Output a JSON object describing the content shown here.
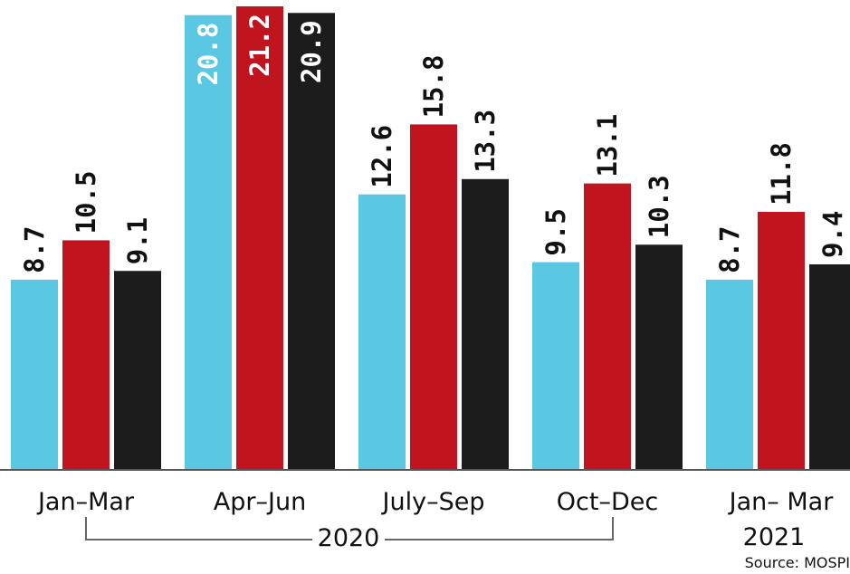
{
  "chart_data": {
    "type": "bar",
    "categories": [
      "Jan–Mar",
      "Apr–Jun",
      "July–Sep",
      "Oct–Dec",
      "Jan– Mar"
    ],
    "series": [
      {
        "color": "#5bc8e3",
        "values": [
          8.7,
          20.8,
          12.6,
          9.5,
          8.7
        ]
      },
      {
        "color": "#c0141f",
        "values": [
          10.5,
          21.2,
          15.8,
          13.1,
          11.8
        ]
      },
      {
        "color": "#1c1c1c",
        "values": [
          9.1,
          20.9,
          13.3,
          10.3,
          9.4
        ]
      }
    ],
    "group_labels": {
      "year_2020": "2020",
      "year_2021": "2021"
    },
    "source": "Source: MOSPI",
    "ylim": [
      0,
      21.2
    ],
    "grid": false,
    "legend": "none"
  }
}
